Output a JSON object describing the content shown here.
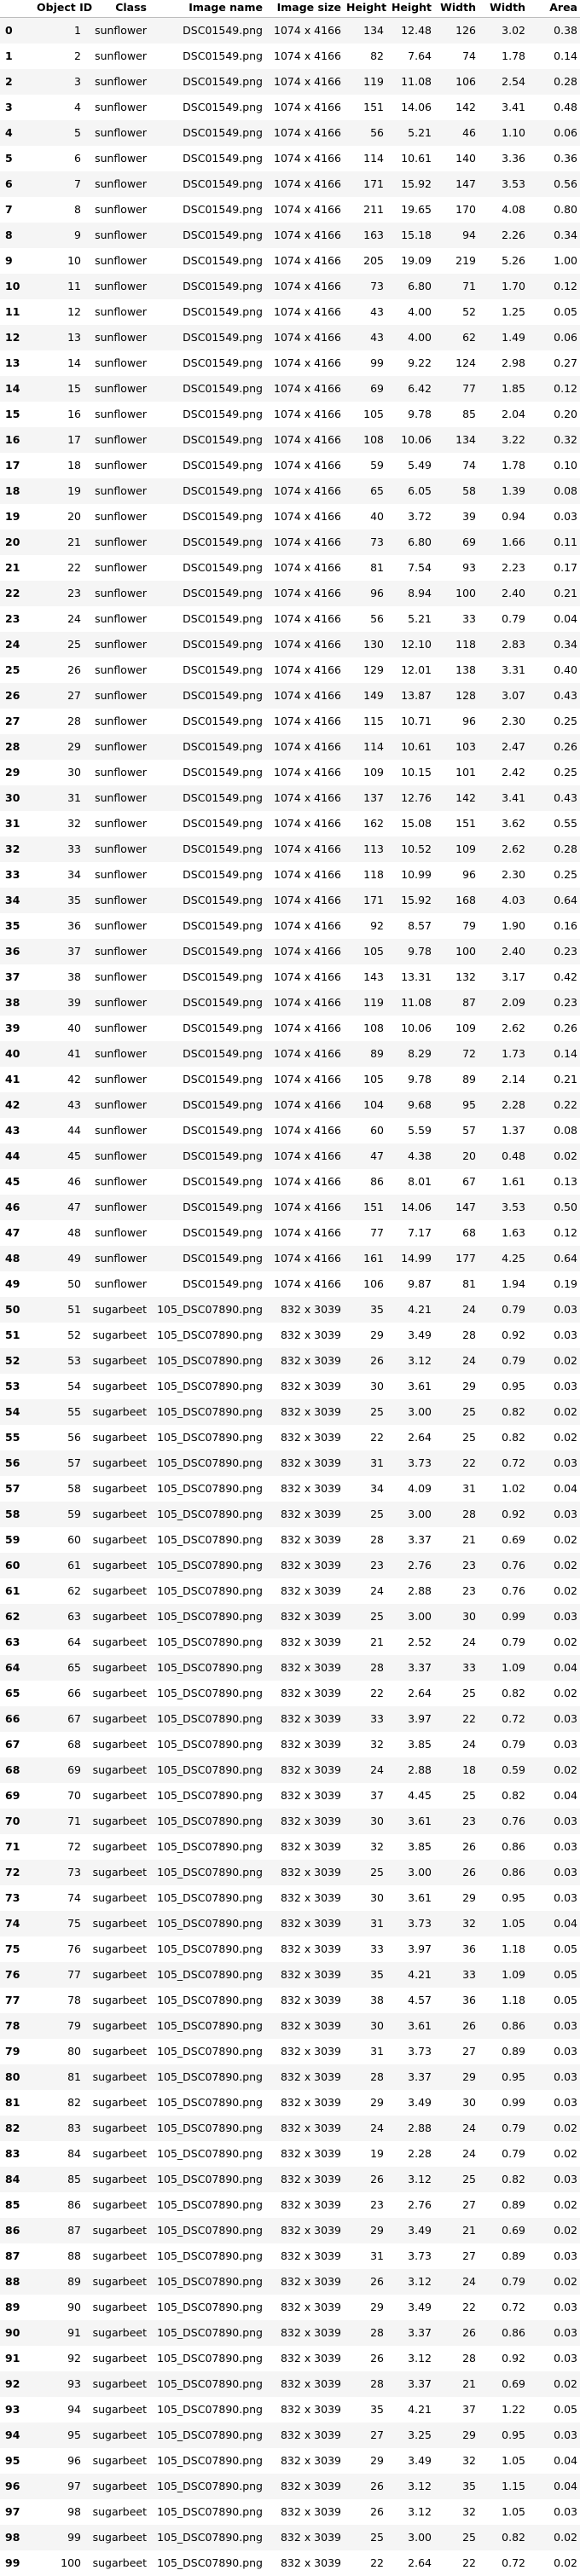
{
  "columns": [
    "",
    "Object ID",
    "Class",
    "Image name",
    "Image size",
    "Height",
    "Height",
    "Width",
    "Width",
    "Area"
  ],
  "rows": [
    [
      "0",
      "1",
      "sunflower",
      "DSC01549.png",
      "1074 x 4166",
      "134",
      "12.48",
      "126",
      "3.02",
      "0.38"
    ],
    [
      "1",
      "2",
      "sunflower",
      "DSC01549.png",
      "1074 x 4166",
      "82",
      "7.64",
      "74",
      "1.78",
      "0.14"
    ],
    [
      "2",
      "3",
      "sunflower",
      "DSC01549.png",
      "1074 x 4166",
      "119",
      "11.08",
      "106",
      "2.54",
      "0.28"
    ],
    [
      "3",
      "4",
      "sunflower",
      "DSC01549.png",
      "1074 x 4166",
      "151",
      "14.06",
      "142",
      "3.41",
      "0.48"
    ],
    [
      "4",
      "5",
      "sunflower",
      "DSC01549.png",
      "1074 x 4166",
      "56",
      "5.21",
      "46",
      "1.10",
      "0.06"
    ],
    [
      "5",
      "6",
      "sunflower",
      "DSC01549.png",
      "1074 x 4166",
      "114",
      "10.61",
      "140",
      "3.36",
      "0.36"
    ],
    [
      "6",
      "7",
      "sunflower",
      "DSC01549.png",
      "1074 x 4166",
      "171",
      "15.92",
      "147",
      "3.53",
      "0.56"
    ],
    [
      "7",
      "8",
      "sunflower",
      "DSC01549.png",
      "1074 x 4166",
      "211",
      "19.65",
      "170",
      "4.08",
      "0.80"
    ],
    [
      "8",
      "9",
      "sunflower",
      "DSC01549.png",
      "1074 x 4166",
      "163",
      "15.18",
      "94",
      "2.26",
      "0.34"
    ],
    [
      "9",
      "10",
      "sunflower",
      "DSC01549.png",
      "1074 x 4166",
      "205",
      "19.09",
      "219",
      "5.26",
      "1.00"
    ],
    [
      "10",
      "11",
      "sunflower",
      "DSC01549.png",
      "1074 x 4166",
      "73",
      "6.80",
      "71",
      "1.70",
      "0.12"
    ],
    [
      "11",
      "12",
      "sunflower",
      "DSC01549.png",
      "1074 x 4166",
      "43",
      "4.00",
      "52",
      "1.25",
      "0.05"
    ],
    [
      "12",
      "13",
      "sunflower",
      "DSC01549.png",
      "1074 x 4166",
      "43",
      "4.00",
      "62",
      "1.49",
      "0.06"
    ],
    [
      "13",
      "14",
      "sunflower",
      "DSC01549.png",
      "1074 x 4166",
      "99",
      "9.22",
      "124",
      "2.98",
      "0.27"
    ],
    [
      "14",
      "15",
      "sunflower",
      "DSC01549.png",
      "1074 x 4166",
      "69",
      "6.42",
      "77",
      "1.85",
      "0.12"
    ],
    [
      "15",
      "16",
      "sunflower",
      "DSC01549.png",
      "1074 x 4166",
      "105",
      "9.78",
      "85",
      "2.04",
      "0.20"
    ],
    [
      "16",
      "17",
      "sunflower",
      "DSC01549.png",
      "1074 x 4166",
      "108",
      "10.06",
      "134",
      "3.22",
      "0.32"
    ],
    [
      "17",
      "18",
      "sunflower",
      "DSC01549.png",
      "1074 x 4166",
      "59",
      "5.49",
      "74",
      "1.78",
      "0.10"
    ],
    [
      "18",
      "19",
      "sunflower",
      "DSC01549.png",
      "1074 x 4166",
      "65",
      "6.05",
      "58",
      "1.39",
      "0.08"
    ],
    [
      "19",
      "20",
      "sunflower",
      "DSC01549.png",
      "1074 x 4166",
      "40",
      "3.72",
      "39",
      "0.94",
      "0.03"
    ],
    [
      "20",
      "21",
      "sunflower",
      "DSC01549.png",
      "1074 x 4166",
      "73",
      "6.80",
      "69",
      "1.66",
      "0.11"
    ],
    [
      "21",
      "22",
      "sunflower",
      "DSC01549.png",
      "1074 x 4166",
      "81",
      "7.54",
      "93",
      "2.23",
      "0.17"
    ],
    [
      "22",
      "23",
      "sunflower",
      "DSC01549.png",
      "1074 x 4166",
      "96",
      "8.94",
      "100",
      "2.40",
      "0.21"
    ],
    [
      "23",
      "24",
      "sunflower",
      "DSC01549.png",
      "1074 x 4166",
      "56",
      "5.21",
      "33",
      "0.79",
      "0.04"
    ],
    [
      "24",
      "25",
      "sunflower",
      "DSC01549.png",
      "1074 x 4166",
      "130",
      "12.10",
      "118",
      "2.83",
      "0.34"
    ],
    [
      "25",
      "26",
      "sunflower",
      "DSC01549.png",
      "1074 x 4166",
      "129",
      "12.01",
      "138",
      "3.31",
      "0.40"
    ],
    [
      "26",
      "27",
      "sunflower",
      "DSC01549.png",
      "1074 x 4166",
      "149",
      "13.87",
      "128",
      "3.07",
      "0.43"
    ],
    [
      "27",
      "28",
      "sunflower",
      "DSC01549.png",
      "1074 x 4166",
      "115",
      "10.71",
      "96",
      "2.30",
      "0.25"
    ],
    [
      "28",
      "29",
      "sunflower",
      "DSC01549.png",
      "1074 x 4166",
      "114",
      "10.61",
      "103",
      "2.47",
      "0.26"
    ],
    [
      "29",
      "30",
      "sunflower",
      "DSC01549.png",
      "1074 x 4166",
      "109",
      "10.15",
      "101",
      "2.42",
      "0.25"
    ],
    [
      "30",
      "31",
      "sunflower",
      "DSC01549.png",
      "1074 x 4166",
      "137",
      "12.76",
      "142",
      "3.41",
      "0.43"
    ],
    [
      "31",
      "32",
      "sunflower",
      "DSC01549.png",
      "1074 x 4166",
      "162",
      "15.08",
      "151",
      "3.62",
      "0.55"
    ],
    [
      "32",
      "33",
      "sunflower",
      "DSC01549.png",
      "1074 x 4166",
      "113",
      "10.52",
      "109",
      "2.62",
      "0.28"
    ],
    [
      "33",
      "34",
      "sunflower",
      "DSC01549.png",
      "1074 x 4166",
      "118",
      "10.99",
      "96",
      "2.30",
      "0.25"
    ],
    [
      "34",
      "35",
      "sunflower",
      "DSC01549.png",
      "1074 x 4166",
      "171",
      "15.92",
      "168",
      "4.03",
      "0.64"
    ],
    [
      "35",
      "36",
      "sunflower",
      "DSC01549.png",
      "1074 x 4166",
      "92",
      "8.57",
      "79",
      "1.90",
      "0.16"
    ],
    [
      "36",
      "37",
      "sunflower",
      "DSC01549.png",
      "1074 x 4166",
      "105",
      "9.78",
      "100",
      "2.40",
      "0.23"
    ],
    [
      "37",
      "38",
      "sunflower",
      "DSC01549.png",
      "1074 x 4166",
      "143",
      "13.31",
      "132",
      "3.17",
      "0.42"
    ],
    [
      "38",
      "39",
      "sunflower",
      "DSC01549.png",
      "1074 x 4166",
      "119",
      "11.08",
      "87",
      "2.09",
      "0.23"
    ],
    [
      "39",
      "40",
      "sunflower",
      "DSC01549.png",
      "1074 x 4166",
      "108",
      "10.06",
      "109",
      "2.62",
      "0.26"
    ],
    [
      "40",
      "41",
      "sunflower",
      "DSC01549.png",
      "1074 x 4166",
      "89",
      "8.29",
      "72",
      "1.73",
      "0.14"
    ],
    [
      "41",
      "42",
      "sunflower",
      "DSC01549.png",
      "1074 x 4166",
      "105",
      "9.78",
      "89",
      "2.14",
      "0.21"
    ],
    [
      "42",
      "43",
      "sunflower",
      "DSC01549.png",
      "1074 x 4166",
      "104",
      "9.68",
      "95",
      "2.28",
      "0.22"
    ],
    [
      "43",
      "44",
      "sunflower",
      "DSC01549.png",
      "1074 x 4166",
      "60",
      "5.59",
      "57",
      "1.37",
      "0.08"
    ],
    [
      "44",
      "45",
      "sunflower",
      "DSC01549.png",
      "1074 x 4166",
      "47",
      "4.38",
      "20",
      "0.48",
      "0.02"
    ],
    [
      "45",
      "46",
      "sunflower",
      "DSC01549.png",
      "1074 x 4166",
      "86",
      "8.01",
      "67",
      "1.61",
      "0.13"
    ],
    [
      "46",
      "47",
      "sunflower",
      "DSC01549.png",
      "1074 x 4166",
      "151",
      "14.06",
      "147",
      "3.53",
      "0.50"
    ],
    [
      "47",
      "48",
      "sunflower",
      "DSC01549.png",
      "1074 x 4166",
      "77",
      "7.17",
      "68",
      "1.63",
      "0.12"
    ],
    [
      "48",
      "49",
      "sunflower",
      "DSC01549.png",
      "1074 x 4166",
      "161",
      "14.99",
      "177",
      "4.25",
      "0.64"
    ],
    [
      "49",
      "50",
      "sunflower",
      "DSC01549.png",
      "1074 x 4166",
      "106",
      "9.87",
      "81",
      "1.94",
      "0.19"
    ],
    [
      "50",
      "51",
      "sugarbeet",
      "105_DSC07890.png",
      "832 x 3039",
      "35",
      "4.21",
      "24",
      "0.79",
      "0.03"
    ],
    [
      "51",
      "52",
      "sugarbeet",
      "105_DSC07890.png",
      "832 x 3039",
      "29",
      "3.49",
      "28",
      "0.92",
      "0.03"
    ],
    [
      "52",
      "53",
      "sugarbeet",
      "105_DSC07890.png",
      "832 x 3039",
      "26",
      "3.12",
      "24",
      "0.79",
      "0.02"
    ],
    [
      "53",
      "54",
      "sugarbeet",
      "105_DSC07890.png",
      "832 x 3039",
      "30",
      "3.61",
      "29",
      "0.95",
      "0.03"
    ],
    [
      "54",
      "55",
      "sugarbeet",
      "105_DSC07890.png",
      "832 x 3039",
      "25",
      "3.00",
      "25",
      "0.82",
      "0.02"
    ],
    [
      "55",
      "56",
      "sugarbeet",
      "105_DSC07890.png",
      "832 x 3039",
      "22",
      "2.64",
      "25",
      "0.82",
      "0.02"
    ],
    [
      "56",
      "57",
      "sugarbeet",
      "105_DSC07890.png",
      "832 x 3039",
      "31",
      "3.73",
      "22",
      "0.72",
      "0.03"
    ],
    [
      "57",
      "58",
      "sugarbeet",
      "105_DSC07890.png",
      "832 x 3039",
      "34",
      "4.09",
      "31",
      "1.02",
      "0.04"
    ],
    [
      "58",
      "59",
      "sugarbeet",
      "105_DSC07890.png",
      "832 x 3039",
      "25",
      "3.00",
      "28",
      "0.92",
      "0.03"
    ],
    [
      "59",
      "60",
      "sugarbeet",
      "105_DSC07890.png",
      "832 x 3039",
      "28",
      "3.37",
      "21",
      "0.69",
      "0.02"
    ],
    [
      "60",
      "61",
      "sugarbeet",
      "105_DSC07890.png",
      "832 x 3039",
      "23",
      "2.76",
      "23",
      "0.76",
      "0.02"
    ],
    [
      "61",
      "62",
      "sugarbeet",
      "105_DSC07890.png",
      "832 x 3039",
      "24",
      "2.88",
      "23",
      "0.76",
      "0.02"
    ],
    [
      "62",
      "63",
      "sugarbeet",
      "105_DSC07890.png",
      "832 x 3039",
      "25",
      "3.00",
      "30",
      "0.99",
      "0.03"
    ],
    [
      "63",
      "64",
      "sugarbeet",
      "105_DSC07890.png",
      "832 x 3039",
      "21",
      "2.52",
      "24",
      "0.79",
      "0.02"
    ],
    [
      "64",
      "65",
      "sugarbeet",
      "105_DSC07890.png",
      "832 x 3039",
      "28",
      "3.37",
      "33",
      "1.09",
      "0.04"
    ],
    [
      "65",
      "66",
      "sugarbeet",
      "105_DSC07890.png",
      "832 x 3039",
      "22",
      "2.64",
      "25",
      "0.82",
      "0.02"
    ],
    [
      "66",
      "67",
      "sugarbeet",
      "105_DSC07890.png",
      "832 x 3039",
      "33",
      "3.97",
      "22",
      "0.72",
      "0.03"
    ],
    [
      "67",
      "68",
      "sugarbeet",
      "105_DSC07890.png",
      "832 x 3039",
      "32",
      "3.85",
      "24",
      "0.79",
      "0.03"
    ],
    [
      "68",
      "69",
      "sugarbeet",
      "105_DSC07890.png",
      "832 x 3039",
      "24",
      "2.88",
      "18",
      "0.59",
      "0.02"
    ],
    [
      "69",
      "70",
      "sugarbeet",
      "105_DSC07890.png",
      "832 x 3039",
      "37",
      "4.45",
      "25",
      "0.82",
      "0.04"
    ],
    [
      "70",
      "71",
      "sugarbeet",
      "105_DSC07890.png",
      "832 x 3039",
      "30",
      "3.61",
      "23",
      "0.76",
      "0.03"
    ],
    [
      "71",
      "72",
      "sugarbeet",
      "105_DSC07890.png",
      "832 x 3039",
      "32",
      "3.85",
      "26",
      "0.86",
      "0.03"
    ],
    [
      "72",
      "73",
      "sugarbeet",
      "105_DSC07890.png",
      "832 x 3039",
      "25",
      "3.00",
      "26",
      "0.86",
      "0.03"
    ],
    [
      "73",
      "74",
      "sugarbeet",
      "105_DSC07890.png",
      "832 x 3039",
      "30",
      "3.61",
      "29",
      "0.95",
      "0.03"
    ],
    [
      "74",
      "75",
      "sugarbeet",
      "105_DSC07890.png",
      "832 x 3039",
      "31",
      "3.73",
      "32",
      "1.05",
      "0.04"
    ],
    [
      "75",
      "76",
      "sugarbeet",
      "105_DSC07890.png",
      "832 x 3039",
      "33",
      "3.97",
      "36",
      "1.18",
      "0.05"
    ],
    [
      "76",
      "77",
      "sugarbeet",
      "105_DSC07890.png",
      "832 x 3039",
      "35",
      "4.21",
      "33",
      "1.09",
      "0.05"
    ],
    [
      "77",
      "78",
      "sugarbeet",
      "105_DSC07890.png",
      "832 x 3039",
      "38",
      "4.57",
      "36",
      "1.18",
      "0.05"
    ],
    [
      "78",
      "79",
      "sugarbeet",
      "105_DSC07890.png",
      "832 x 3039",
      "30",
      "3.61",
      "26",
      "0.86",
      "0.03"
    ],
    [
      "79",
      "80",
      "sugarbeet",
      "105_DSC07890.png",
      "832 x 3039",
      "31",
      "3.73",
      "27",
      "0.89",
      "0.03"
    ],
    [
      "80",
      "81",
      "sugarbeet",
      "105_DSC07890.png",
      "832 x 3039",
      "28",
      "3.37",
      "29",
      "0.95",
      "0.03"
    ],
    [
      "81",
      "82",
      "sugarbeet",
      "105_DSC07890.png",
      "832 x 3039",
      "29",
      "3.49",
      "30",
      "0.99",
      "0.03"
    ],
    [
      "82",
      "83",
      "sugarbeet",
      "105_DSC07890.png",
      "832 x 3039",
      "24",
      "2.88",
      "24",
      "0.79",
      "0.02"
    ],
    [
      "83",
      "84",
      "sugarbeet",
      "105_DSC07890.png",
      "832 x 3039",
      "19",
      "2.28",
      "24",
      "0.79",
      "0.02"
    ],
    [
      "84",
      "85",
      "sugarbeet",
      "105_DSC07890.png",
      "832 x 3039",
      "26",
      "3.12",
      "25",
      "0.82",
      "0.03"
    ],
    [
      "85",
      "86",
      "sugarbeet",
      "105_DSC07890.png",
      "832 x 3039",
      "23",
      "2.76",
      "27",
      "0.89",
      "0.02"
    ],
    [
      "86",
      "87",
      "sugarbeet",
      "105_DSC07890.png",
      "832 x 3039",
      "29",
      "3.49",
      "21",
      "0.69",
      "0.02"
    ],
    [
      "87",
      "88",
      "sugarbeet",
      "105_DSC07890.png",
      "832 x 3039",
      "31",
      "3.73",
      "27",
      "0.89",
      "0.03"
    ],
    [
      "88",
      "89",
      "sugarbeet",
      "105_DSC07890.png",
      "832 x 3039",
      "26",
      "3.12",
      "24",
      "0.79",
      "0.02"
    ],
    [
      "89",
      "90",
      "sugarbeet",
      "105_DSC07890.png",
      "832 x 3039",
      "29",
      "3.49",
      "22",
      "0.72",
      "0.03"
    ],
    [
      "90",
      "91",
      "sugarbeet",
      "105_DSC07890.png",
      "832 x 3039",
      "28",
      "3.37",
      "26",
      "0.86",
      "0.03"
    ],
    [
      "91",
      "92",
      "sugarbeet",
      "105_DSC07890.png",
      "832 x 3039",
      "26",
      "3.12",
      "28",
      "0.92",
      "0.03"
    ],
    [
      "92",
      "93",
      "sugarbeet",
      "105_DSC07890.png",
      "832 x 3039",
      "28",
      "3.37",
      "21",
      "0.69",
      "0.02"
    ],
    [
      "93",
      "94",
      "sugarbeet",
      "105_DSC07890.png",
      "832 x 3039",
      "35",
      "4.21",
      "37",
      "1.22",
      "0.05"
    ],
    [
      "94",
      "95",
      "sugarbeet",
      "105_DSC07890.png",
      "832 x 3039",
      "27",
      "3.25",
      "29",
      "0.95",
      "0.03"
    ],
    [
      "95",
      "96",
      "sugarbeet",
      "105_DSC07890.png",
      "832 x 3039",
      "29",
      "3.49",
      "32",
      "1.05",
      "0.04"
    ],
    [
      "96",
      "97",
      "sugarbeet",
      "105_DSC07890.png",
      "832 x 3039",
      "26",
      "3.12",
      "35",
      "1.15",
      "0.04"
    ],
    [
      "97",
      "98",
      "sugarbeet",
      "105_DSC07890.png",
      "832 x 3039",
      "26",
      "3.12",
      "32",
      "1.05",
      "0.03"
    ],
    [
      "98",
      "99",
      "sugarbeet",
      "105_DSC07890.png",
      "832 x 3039",
      "25",
      "3.00",
      "25",
      "0.82",
      "0.02"
    ],
    [
      "99",
      "100",
      "sugarbeet",
      "105_DSC07890.png",
      "832 x 3039",
      "22",
      "2.64",
      "22",
      "0.72",
      "0.02"
    ]
  ]
}
